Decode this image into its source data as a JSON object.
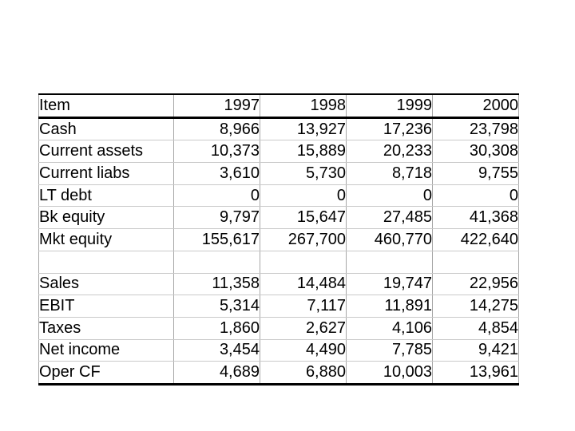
{
  "table": {
    "columns": [
      "Item",
      "1997",
      "1998",
      "1999",
      "2000"
    ],
    "rows": [
      {
        "label": "Cash",
        "values": [
          "8,966",
          "13,927",
          "17,236",
          "23,798"
        ]
      },
      {
        "label": "Current assets",
        "values": [
          "10,373",
          "15,889",
          "20,233",
          "30,308"
        ]
      },
      {
        "label": "Current liabs",
        "values": [
          "3,610",
          "5,730",
          "8,718",
          "9,755"
        ]
      },
      {
        "label": "LT debt",
        "values": [
          "0",
          "0",
          "0",
          "0"
        ]
      },
      {
        "label": "Bk equity",
        "values": [
          "9,797",
          "15,647",
          "27,485",
          "41,368"
        ]
      },
      {
        "label": "Mkt equity",
        "values": [
          "155,617",
          "267,700",
          "460,770",
          "422,640"
        ]
      },
      {
        "label": "",
        "values": [
          "",
          "",
          "",
          ""
        ]
      },
      {
        "label": "Sales",
        "values": [
          "11,358",
          "14,484",
          "19,747",
          "22,956"
        ]
      },
      {
        "label": "EBIT",
        "values": [
          "5,314",
          "7,117",
          "11,891",
          "14,275"
        ]
      },
      {
        "label": "Taxes",
        "values": [
          "1,860",
          "2,627",
          "4,106",
          "4,854"
        ]
      },
      {
        "label": "Net income",
        "values": [
          "3,454",
          "4,490",
          "7,785",
          "9,421"
        ]
      },
      {
        "label": "Oper CF",
        "values": [
          "4,689",
          "6,880",
          "10,003",
          "13,961"
        ]
      }
    ]
  },
  "colors": {
    "background": "#ffffff",
    "text": "#000000",
    "heavy_rule": "#000000",
    "grid_vertical": "#a6a6a6",
    "grid_horizontal": "#c9c9c9"
  }
}
